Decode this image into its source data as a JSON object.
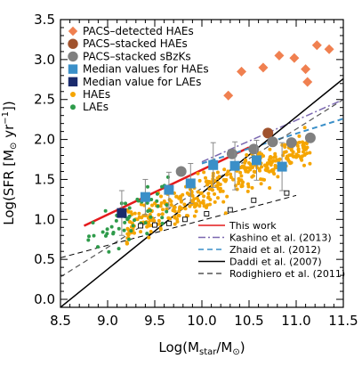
{
  "chart_data": {
    "type": "scatter",
    "xlabel": "Log(M_star/M_⊙)",
    "ylabel": "Log(SFR [M_⊙ yr^-1])",
    "xlim": [
      8.5,
      11.5
    ],
    "ylim": [
      -0.1,
      3.5
    ],
    "x_ticks": [
      "8.5",
      "9.0",
      "9.5",
      "10.0",
      "10.5",
      "11.0",
      "11.5"
    ],
    "y_ticks": [
      "0.0",
      "0.5",
      "1.0",
      "1.5",
      "2.0",
      "2.5",
      "3.0",
      "3.5"
    ],
    "grid": false,
    "legend_top": {
      "placement": "top-left",
      "entries": [
        {
          "label": "PACS–detected HAEs",
          "marker": "diamond",
          "color": "#f08050"
        },
        {
          "label": "PACS–stacked HAEs",
          "marker": "circle",
          "color": "#a0522d"
        },
        {
          "label": "PACS–stacked sBzKs",
          "marker": "circle",
          "color": "#808080"
        },
        {
          "label": "Median values for HAEs",
          "marker": "square",
          "color": "#3a8fc8"
        },
        {
          "label": "Median value for LAEs",
          "marker": "square",
          "color": "#1a2a6c"
        },
        {
          "label": "HAEs",
          "marker": "dot",
          "color": "#f5a500"
        },
        {
          "label": "LAEs",
          "marker": "dot",
          "color": "#2e9b4a"
        }
      ]
    },
    "legend_bottom": {
      "placement": "bottom-right",
      "entries": [
        {
          "label": "This work",
          "color": "#e41a1c",
          "dash": "solid"
        },
        {
          "label": "Kashino et al. (2013)",
          "color": "#7b68b0",
          "dash": "dashdot"
        },
        {
          "label": "Zhaid et al. (2012)",
          "color": "#3a8fc8",
          "dash": "dashed"
        },
        {
          "label": "Daddi et al. (2007)",
          "color": "#000000",
          "dash": "solid"
        },
        {
          "label": "Rodighiero et al. (2011)",
          "color": "#555555",
          "dash": "dashed"
        }
      ]
    },
    "series": [
      {
        "name": "PACS–detected HAEs",
        "marker": "diamond",
        "color": "#f08050",
        "x": [
          10.28,
          10.42,
          10.65,
          10.82,
          10.98,
          11.1,
          11.22,
          11.35,
          11.12
        ],
        "y": [
          2.55,
          2.85,
          2.9,
          3.05,
          3.02,
          2.88,
          3.18,
          3.13,
          2.72
        ]
      },
      {
        "name": "PACS–stacked HAEs",
        "marker": "circle",
        "color": "#a0522d",
        "x": [
          10.7
        ],
        "y": [
          2.08
        ]
      },
      {
        "name": "PACS–stacked sBzKs",
        "marker": "circle",
        "color": "#808080",
        "x": [
          9.78,
          10.32,
          10.55,
          10.75,
          10.95,
          11.15
        ],
        "y": [
          1.6,
          1.82,
          1.88,
          1.97,
          1.96,
          2.02
        ]
      },
      {
        "name": "Median values for HAEs",
        "marker": "square",
        "color": "#3a8fc8",
        "x": [
          9.4,
          9.65,
          9.88,
          10.12,
          10.35,
          10.58,
          10.85
        ],
        "y": [
          1.28,
          1.37,
          1.45,
          1.68,
          1.67,
          1.74,
          1.66
        ],
        "yerr": [
          0.22,
          0.22,
          0.25,
          0.28,
          0.3,
          0.25,
          0.3
        ]
      },
      {
        "name": "Median value for LAEs",
        "marker": "square",
        "color": "#1a2a6c",
        "x": [
          9.15
        ],
        "y": [
          1.08
        ],
        "yerr": [
          0.28
        ]
      },
      {
        "name": "Rodighiero open squares",
        "marker": "open-square",
        "color": "#000000",
        "x": [
          9.35,
          9.5,
          9.65,
          9.82,
          10.05,
          10.3,
          10.55,
          10.9
        ],
        "y": [
          0.92,
          0.93,
          0.95,
          1.0,
          1.07,
          1.12,
          1.24,
          1.33
        ]
      }
    ],
    "lines": [
      {
        "name": "This work",
        "color": "#e41a1c",
        "dash": "solid",
        "width": 2.5,
        "x": [
          8.75,
          10.5
        ],
        "y": [
          0.92,
          1.9
        ]
      },
      {
        "name": "Kashino et al. (2013)",
        "color": "#7b68b0",
        "dash": "dashdot",
        "width": 1.5,
        "x": [
          10.0,
          11.5
        ],
        "y": [
          1.72,
          2.5
        ]
      },
      {
        "name": "Zhaid et al. (2012)",
        "color": "#3a8fc8",
        "dash": "dashed",
        "width": 2,
        "x": [
          10.0,
          11.5
        ],
        "y": [
          1.7,
          2.26
        ]
      },
      {
        "name": "Daddi et al. (2007)",
        "color": "#000000",
        "dash": "solid",
        "width": 1.5,
        "x": [
          8.5,
          11.5
        ],
        "y": [
          -0.1,
          2.76
        ]
      },
      {
        "name": "Rodighiero et al. (2011)",
        "color": "#555555",
        "dash": "dashed",
        "width": 1.2,
        "x": [
          8.5,
          11.5
        ],
        "y": [
          0.28,
          2.5
        ]
      },
      {
        "name": "lower dashed",
        "color": "#000000",
        "dash": "dashed",
        "width": 1,
        "x": [
          8.5,
          11.0
        ],
        "y": [
          0.52,
          1.3
        ]
      }
    ]
  }
}
